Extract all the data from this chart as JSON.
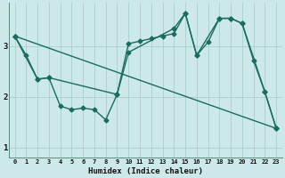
{
  "xlabel": "Humidex (Indice chaleur)",
  "bg_color": "#cce8e8",
  "line_color": "#1a6b60",
  "grid_color": "#aad0cc",
  "xlim": [
    -0.5,
    23.5
  ],
  "ylim": [
    0.8,
    3.85
  ],
  "xticks": [
    0,
    1,
    2,
    3,
    4,
    5,
    6,
    7,
    8,
    9,
    10,
    11,
    12,
    13,
    14,
    15,
    16,
    17,
    18,
    19,
    20,
    21,
    22,
    23
  ],
  "yticks": [
    1,
    2,
    3
  ],
  "line1_x": [
    0,
    1,
    2,
    3,
    4,
    5,
    6,
    7,
    8,
    9,
    10,
    11,
    12,
    13,
    14,
    15,
    16,
    17,
    18,
    19,
    20,
    21,
    22,
    23
  ],
  "line1_y": [
    3.2,
    2.82,
    2.35,
    2.38,
    1.82,
    1.75,
    1.78,
    1.75,
    1.55,
    2.05,
    3.05,
    3.1,
    3.15,
    3.2,
    3.25,
    3.65,
    2.82,
    3.08,
    3.55,
    3.55,
    3.45,
    2.72,
    2.1,
    1.38
  ],
  "line2_x": [
    0,
    2,
    3,
    9,
    10,
    14,
    15,
    16,
    18,
    19,
    20,
    22,
    23
  ],
  "line2_y": [
    3.2,
    2.35,
    2.38,
    2.05,
    2.88,
    3.35,
    3.65,
    2.82,
    3.55,
    3.55,
    3.45,
    2.1,
    1.38
  ],
  "line3_x": [
    0,
    23
  ],
  "line3_y": [
    3.2,
    1.38
  ],
  "marker_size": 2.5,
  "linewidth": 1.0
}
